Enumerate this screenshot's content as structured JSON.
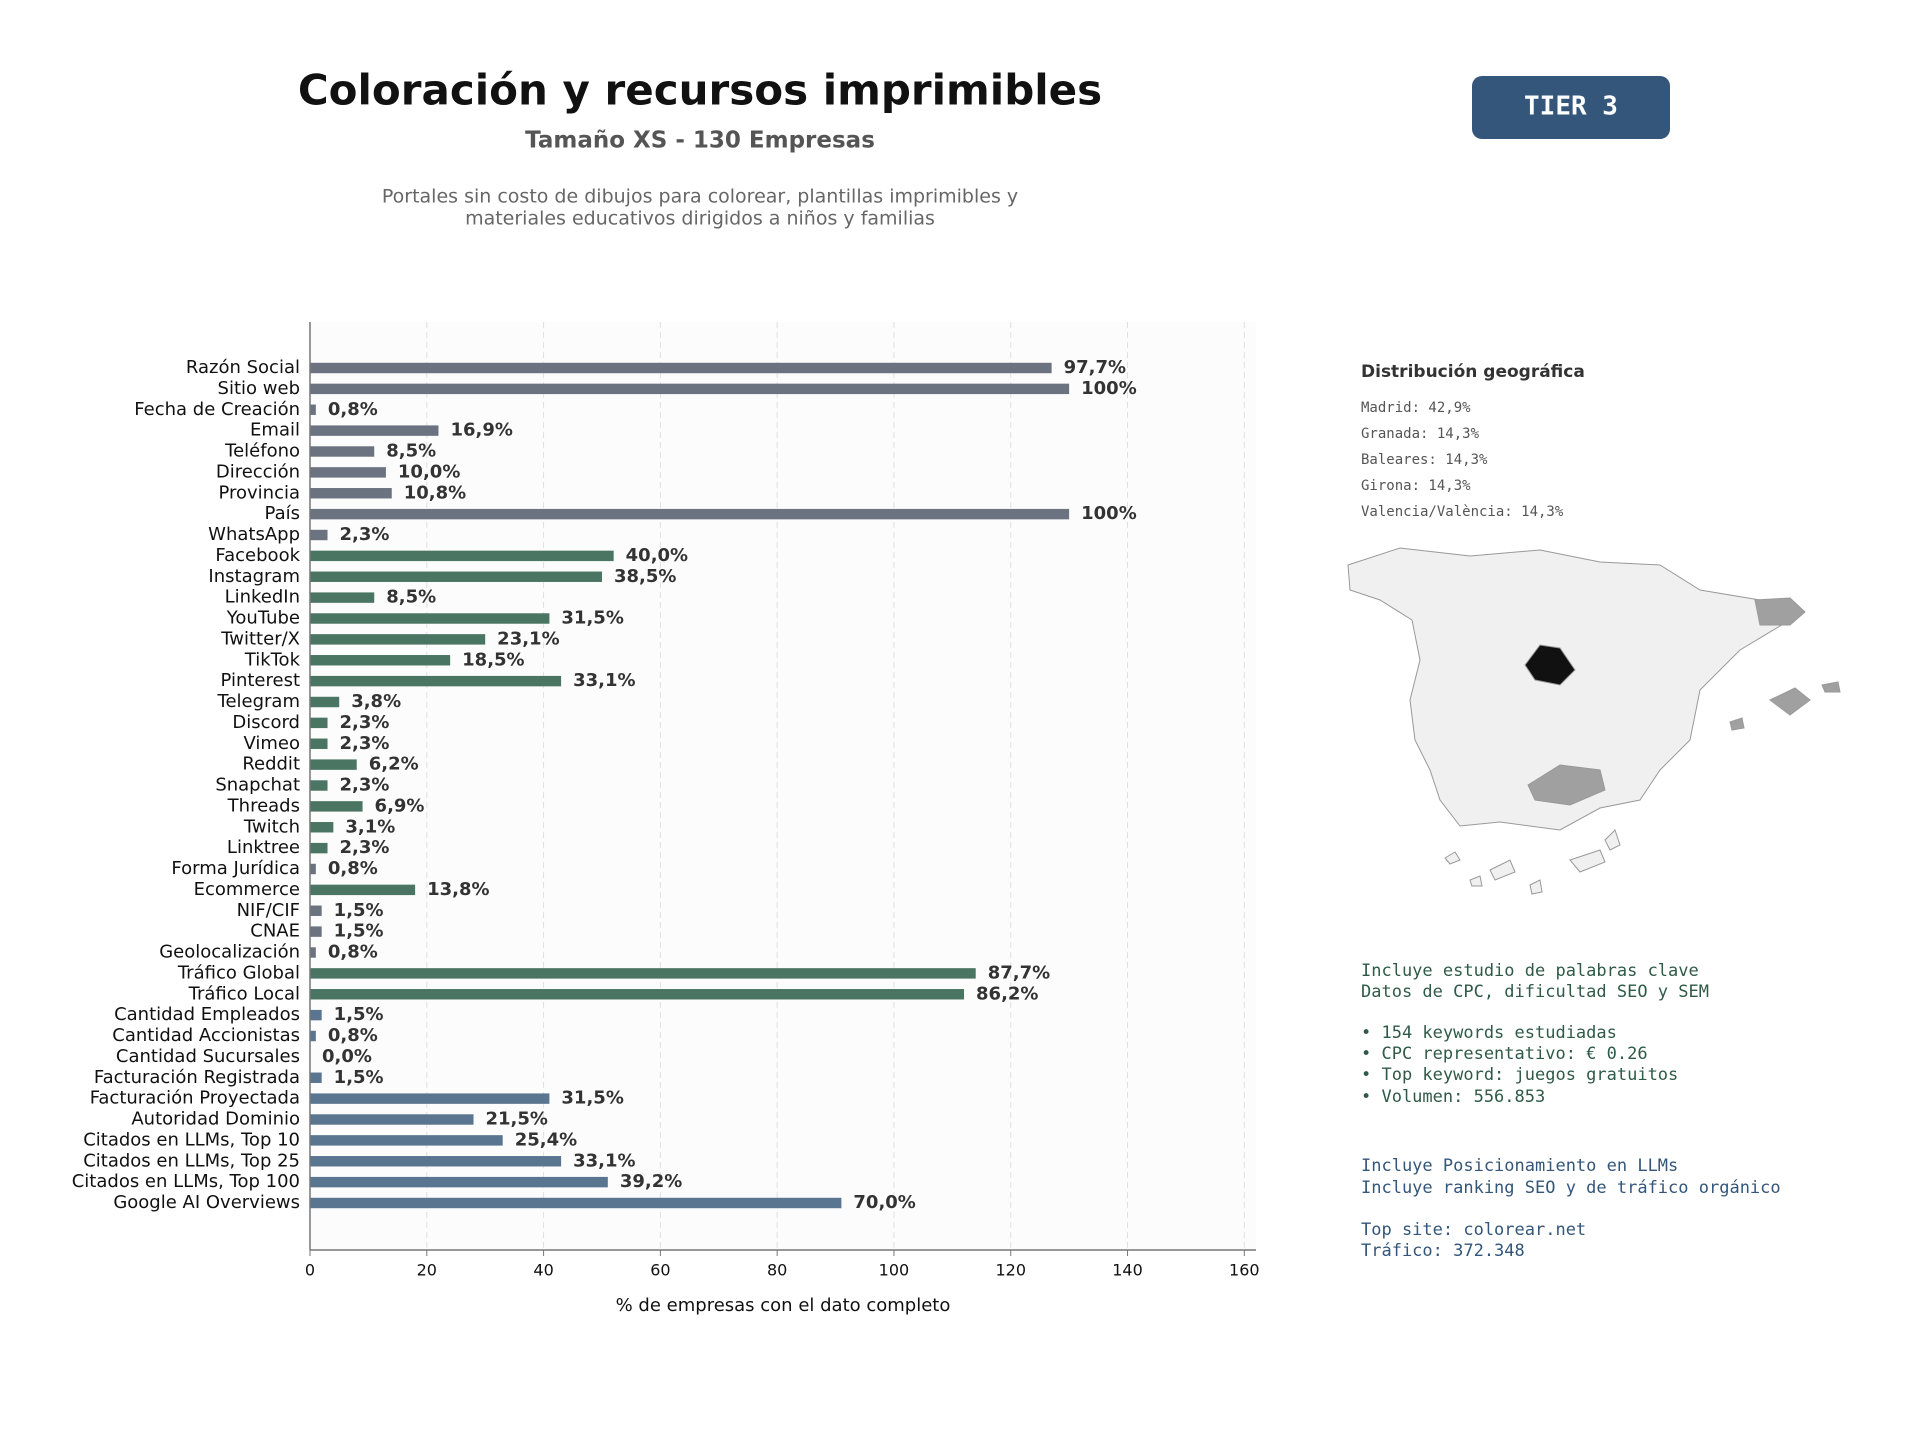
{
  "chart_data": {
    "type": "bar",
    "orientation": "horizontal",
    "title": "Coloración y recursos imprimibles",
    "subtitle": "Tamaño XS - 130 Empresas",
    "description": [
      "Portales sin costo de dibujos para colorear, plantillas imprimibles y",
      "materiales educativos dirigidos a niños y familias"
    ],
    "xlabel": "% de empresas con el dato completo",
    "categories": [
      "Razón Social",
      "Sitio web",
      "Fecha de Creación",
      "Email",
      "Teléfono",
      "Dirección",
      "Provincia",
      "País",
      "WhatsApp",
      "Facebook",
      "Instagram",
      "LinkedIn",
      "YouTube",
      "Twitter/X",
      "TikTok",
      "Pinterest",
      "Telegram",
      "Discord",
      "Vimeo",
      "Reddit",
      "Snapchat",
      "Threads",
      "Twitch",
      "Linktree",
      "Forma Jurídica",
      "Ecommerce",
      "NIF/CIF",
      "CNAE",
      "Geolocalización",
      "Tráfico Global",
      "Tráfico Local",
      "Cantidad Empleados",
      "Cantidad Accionistas",
      "Cantidad Sucursales",
      "Facturación Registrada",
      "Facturación Proyectada",
      "Autoridad Dominio",
      "Citados en LLMs, Top 10",
      "Citados en LLMs, Top 25",
      "Citados en LLMs, Top 100",
      "Google AI Overviews"
    ],
    "values": [
      127,
      130,
      1,
      22,
      11,
      13,
      14,
      130,
      3,
      52,
      50,
      11,
      41,
      30,
      24,
      43,
      5,
      3,
      3,
      8,
      3,
      9,
      4,
      3,
      1,
      18,
      2,
      2,
      1,
      114,
      112,
      2,
      1,
      0,
      2,
      41,
      28,
      33,
      43,
      51,
      91
    ],
    "value_labels": [
      "97,7%",
      "100%",
      "0,8%",
      "16,9%",
      "8,5%",
      "10,0%",
      "10,8%",
      "100%",
      "2,3%",
      "40,0%",
      "38,5%",
      "8,5%",
      "31,5%",
      "23,1%",
      "18,5%",
      "33,1%",
      "3,8%",
      "2,3%",
      "2,3%",
      "6,2%",
      "2,3%",
      "6,9%",
      "3,1%",
      "2,3%",
      "0,8%",
      "13,8%",
      "1,5%",
      "1,5%",
      "0,8%",
      "87,7%",
      "86,2%",
      "1,5%",
      "0,8%",
      "0,0%",
      "1,5%",
      "31,5%",
      "21,5%",
      "25,4%",
      "33,1%",
      "39,2%",
      "70,0%"
    ],
    "colors": [
      "#6b7380",
      "#6b7380",
      "#6b7380",
      "#6b7380",
      "#6b7380",
      "#6b7380",
      "#6b7380",
      "#6b7380",
      "#6b7380",
      "#4a7562",
      "#4a7562",
      "#4a7562",
      "#4a7562",
      "#4a7562",
      "#4a7562",
      "#4a7562",
      "#4a7562",
      "#4a7562",
      "#4a7562",
      "#4a7562",
      "#4a7562",
      "#4a7562",
      "#4a7562",
      "#4a7562",
      "#6b7380",
      "#4a7562",
      "#6b7380",
      "#6b7380",
      "#6b7380",
      "#4a7562",
      "#4a7562",
      "#5a7590",
      "#5a7590",
      "#5a7590",
      "#5a7590",
      "#5a7590",
      "#5a7590",
      "#5a7590",
      "#5a7590",
      "#5a7590",
      "#5a7590"
    ],
    "xlim": [
      0,
      162
    ],
    "xticks": [
      0,
      20,
      40,
      60,
      80,
      100,
      120,
      140,
      160
    ],
    "grid": true
  },
  "badge": "TIER 3",
  "side_panel": {
    "geo_title": "Distribución geográfica",
    "geo_items": [
      "Madrid: 42,9%",
      "Granada: 14,3%",
      "Baleares: 14,3%",
      "Girona: 14,3%",
      "Valencia/València: 14,3%"
    ],
    "keywords": [
      "Incluye estudio de palabras clave",
      "Datos de CPC, dificultad SEO y SEM",
      "• 154 keywords estudiadas",
      "• CPC representativo: € 0.26",
      "• Top keyword: juegos gratuitos",
      "• Volumen: 556.853"
    ],
    "llm": [
      "Incluye Posicionamiento en LLMs",
      "Incluye ranking SEO y de tráfico orgánico",
      "Top site: colorear.net",
      "Tráfico: 372.348"
    ]
  }
}
